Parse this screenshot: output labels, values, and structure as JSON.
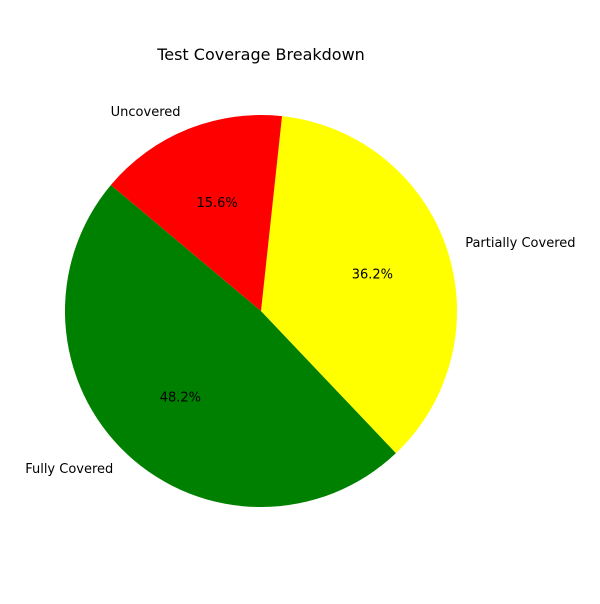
{
  "chart_data": {
    "type": "pie",
    "title": "Test Coverage Breakdown",
    "slices": [
      {
        "label": "Fully Covered",
        "value": 48.2,
        "pct_text": "48.2%",
        "color": "#008000"
      },
      {
        "label": "Partially Covered",
        "value": 36.2,
        "pct_text": "36.2%",
        "color": "#ffff00"
      },
      {
        "label": "Uncovered",
        "value": 15.6,
        "pct_text": "15.6%",
        "color": "#ff0000"
      }
    ],
    "start_angle_deg": 140,
    "direction": "counterclockwise",
    "legend": "none"
  }
}
